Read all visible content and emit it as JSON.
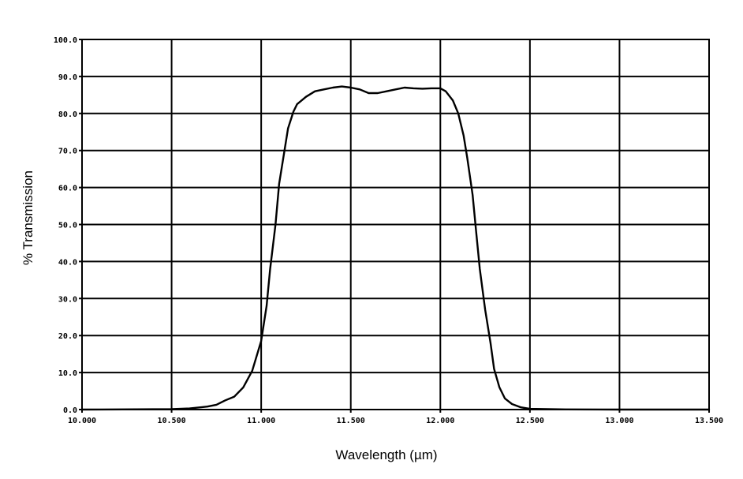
{
  "chart_data": {
    "type": "line",
    "title": "",
    "xlabel": "Wavelength (µm)",
    "ylabel": "% Transmission",
    "xlim": [
      10.0,
      13.5
    ],
    "ylim": [
      0.0,
      100.0
    ],
    "grid": true,
    "legend": "none",
    "line_color": "#000000",
    "x_ticks": [
      {
        "value": 10.0,
        "label": "10.000"
      },
      {
        "value": 10.5,
        "label": "10.500"
      },
      {
        "value": 11.0,
        "label": "11.000"
      },
      {
        "value": 11.5,
        "label": "11.500"
      },
      {
        "value": 12.0,
        "label": "12.000"
      },
      {
        "value": 12.5,
        "label": "12.500"
      },
      {
        "value": 13.0,
        "label": "13.000"
      },
      {
        "value": 13.5,
        "label": "13.500"
      }
    ],
    "y_ticks": [
      {
        "value": 0,
        "label": "0.0"
      },
      {
        "value": 10,
        "label": "10.0"
      },
      {
        "value": 20,
        "label": "20.0"
      },
      {
        "value": 30,
        "label": "30.0"
      },
      {
        "value": 40,
        "label": "40.0"
      },
      {
        "value": 50,
        "label": "50.0"
      },
      {
        "value": 60,
        "label": "60.0"
      },
      {
        "value": 70,
        "label": "70.0"
      },
      {
        "value": 80,
        "label": "80.0"
      },
      {
        "value": 90,
        "label": "90.0"
      },
      {
        "value": 100,
        "label": "100.0"
      }
    ],
    "series": [
      {
        "x": [
          10.0,
          10.5,
          10.6,
          10.7,
          10.75,
          10.8,
          10.85,
          10.9,
          10.95,
          11.0,
          11.03,
          11.05,
          11.08,
          11.1,
          11.13,
          11.15,
          11.18,
          11.2,
          11.25,
          11.3,
          11.35,
          11.4,
          11.45,
          11.5,
          11.55,
          11.6,
          11.65,
          11.7,
          11.75,
          11.8,
          11.85,
          11.9,
          11.95,
          12.0,
          12.03,
          12.07,
          12.1,
          12.13,
          12.15,
          12.18,
          12.2,
          12.22,
          12.25,
          12.28,
          12.3,
          12.33,
          12.36,
          12.4,
          12.45,
          12.5,
          12.6,
          12.7,
          13.0,
          13.5
        ],
        "y": [
          0.0,
          0.1,
          0.3,
          0.8,
          1.3,
          2.5,
          3.5,
          6.0,
          10.5,
          18.5,
          28.0,
          38.0,
          50.0,
          61.0,
          70.0,
          76.0,
          80.5,
          82.5,
          84.5,
          86.0,
          86.5,
          87.0,
          87.3,
          87.0,
          86.5,
          85.5,
          85.5,
          86.0,
          86.5,
          87.0,
          86.8,
          86.7,
          86.8,
          86.8,
          86.0,
          83.5,
          80.0,
          74.0,
          68.0,
          58.0,
          48.0,
          38.0,
          27.0,
          18.0,
          11.0,
          6.0,
          3.0,
          1.5,
          0.6,
          0.2,
          0.1,
          0.05,
          0.0,
          0.0
        ]
      }
    ]
  }
}
